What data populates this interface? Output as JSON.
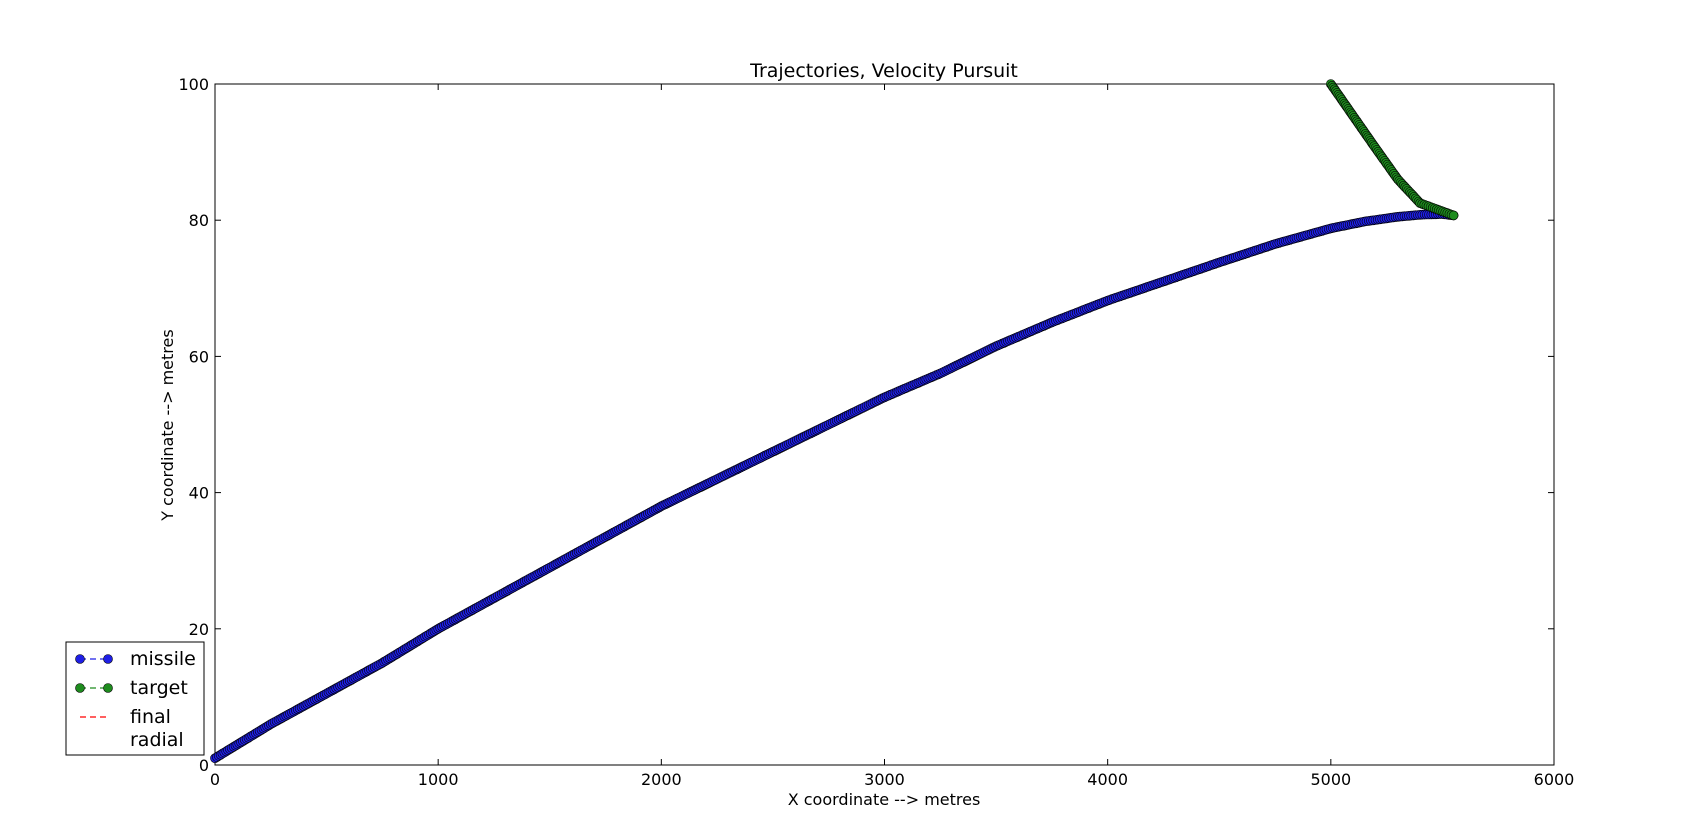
{
  "chart_data": {
    "type": "line",
    "title": "Trajectories, Velocity Pursuit",
    "xlabel": "X coordinate -->  metres",
    "ylabel": "Y coordinate -->  metres",
    "xlim": [
      0,
      6000
    ],
    "ylim": [
      0,
      100
    ],
    "xticks": [
      "0",
      "1000",
      "2000",
      "3000",
      "4000",
      "5000",
      "6000"
    ],
    "yticks": [
      "0",
      "20",
      "40",
      "60",
      "80",
      "100"
    ],
    "grid": false,
    "legend_position": "lower-left",
    "series": [
      {
        "name": "missile",
        "color": "#1f1fe6",
        "marker": "circle",
        "linestyle": "dashed",
        "points": [
          [
            0,
            1
          ],
          [
            250,
            6
          ],
          [
            500,
            10.5
          ],
          [
            750,
            15
          ],
          [
            1000,
            20
          ],
          [
            1250,
            24.5
          ],
          [
            1500,
            29
          ],
          [
            1750,
            33.5
          ],
          [
            2000,
            38
          ],
          [
            2250,
            42
          ],
          [
            2500,
            46
          ],
          [
            2750,
            50
          ],
          [
            3000,
            54
          ],
          [
            3250,
            57.5
          ],
          [
            3500,
            61.5
          ],
          [
            3750,
            65
          ],
          [
            4000,
            68.2
          ],
          [
            4250,
            71
          ],
          [
            4500,
            73.8
          ],
          [
            4750,
            76.5
          ],
          [
            5000,
            78.8
          ],
          [
            5150,
            79.8
          ],
          [
            5300,
            80.5
          ],
          [
            5400,
            80.8
          ],
          [
            5500,
            80.9
          ],
          [
            5550,
            80.7
          ]
        ]
      },
      {
        "name": "target",
        "color": "#1e8c1e",
        "marker": "circle",
        "linestyle": "dashed",
        "points": [
          [
            5000,
            100
          ],
          [
            5100,
            95.3
          ],
          [
            5200,
            90.6
          ],
          [
            5300,
            86
          ],
          [
            5400,
            82.5
          ],
          [
            5550,
            80.7
          ]
        ]
      },
      {
        "name": "final\nradial",
        "color": "#ff0000",
        "marker": "none",
        "linestyle": "dashed",
        "points": []
      }
    ],
    "legend": [
      {
        "label_lines": [
          "missile"
        ],
        "color": "#1f1fe6",
        "marker": true
      },
      {
        "label_lines": [
          "target"
        ],
        "color": "#1e8c1e",
        "marker": true
      },
      {
        "label_lines": [
          "final",
          "radial"
        ],
        "color": "#ff0000",
        "marker": false
      }
    ]
  }
}
